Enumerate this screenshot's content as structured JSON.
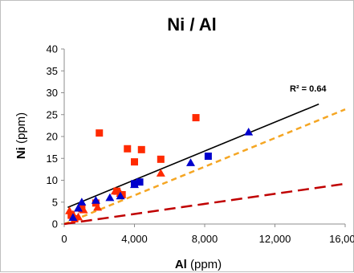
{
  "chart_data": {
    "type": "scatter",
    "title": "Ni / Al",
    "xlabel": {
      "main": "Al",
      "unit": " (ppm)"
    },
    "ylabel": {
      "main": "Ni",
      "unit": " (ppm)"
    },
    "xlim": [
      0,
      16000
    ],
    "ylim": [
      0,
      40
    ],
    "x_ticks": [
      0,
      4000,
      8000,
      12000,
      16000
    ],
    "x_tick_labels": [
      "0",
      "4,000",
      "8,000",
      "12,000",
      "16,000"
    ],
    "y_ticks": [
      0,
      5,
      10,
      15,
      20,
      25,
      30,
      35,
      40
    ],
    "y_tick_labels": [
      "0",
      "5",
      "10",
      "15",
      "20",
      "25",
      "30",
      "35",
      "40"
    ],
    "grid": {
      "x": false,
      "y": false
    },
    "series": [
      {
        "marker": "square",
        "color": "#ff2a00",
        "points": [
          [
            2000,
            20.8
          ],
          [
            3600,
            17.2
          ],
          [
            4400,
            17.0
          ],
          [
            7500,
            24.3
          ],
          [
            5500,
            14.8
          ],
          [
            4000,
            14.2
          ],
          [
            3000,
            7.5
          ],
          [
            3300,
            6.7
          ],
          [
            1000,
            3.5
          ],
          [
            400,
            2.0
          ],
          [
            600,
            1.2
          ],
          [
            1800,
            4.8
          ]
        ]
      },
      {
        "marker": "triangle",
        "color": "#ff2a00",
        "points": [
          [
            300,
            3.0
          ],
          [
            500,
            2.2
          ],
          [
            800,
            1.6
          ],
          [
            1100,
            3.2
          ],
          [
            1900,
            3.8
          ],
          [
            2900,
            7.5
          ],
          [
            3200,
            7.0
          ],
          [
            5500,
            11.6
          ]
        ]
      },
      {
        "marker": "square",
        "color": "#0000cc",
        "points": [
          [
            4000,
            9.2
          ],
          [
            4300,
            9.6
          ],
          [
            8200,
            15.5
          ]
        ]
      },
      {
        "marker": "triangle",
        "color": "#0000cc",
        "points": [
          [
            500,
            1.5
          ],
          [
            800,
            3.6
          ],
          [
            1000,
            5.0
          ],
          [
            1800,
            5.4
          ],
          [
            2600,
            6.0
          ],
          [
            3200,
            6.4
          ],
          [
            4000,
            9.0
          ],
          [
            7200,
            14.0
          ],
          [
            10500,
            21.0
          ]
        ]
      }
    ],
    "lines": [
      {
        "style": "solid",
        "color": "#000000",
        "x": [
          200,
          14500
        ],
        "y": [
          3.8,
          27.4
        ]
      },
      {
        "style": "dashed",
        "color": "#f5a623",
        "x": [
          0,
          16000
        ],
        "y": [
          0,
          26.2
        ]
      },
      {
        "style": "dashed",
        "color": "#c00000",
        "x": [
          0,
          16000
        ],
        "y": [
          0,
          9.2
        ]
      }
    ],
    "annotations": [
      {
        "text": "R² = 0.64"
      }
    ]
  }
}
